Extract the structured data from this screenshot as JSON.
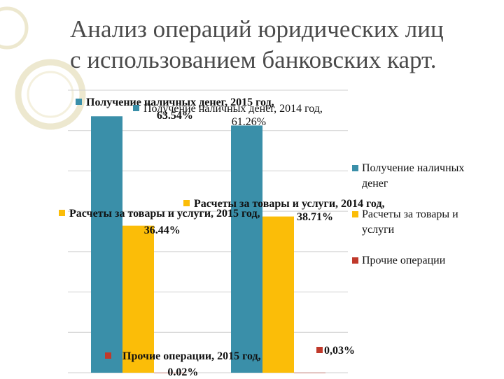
{
  "title": {
    "line1": "Анализ операций юридических лиц",
    "line2": "с использованием банковских карт."
  },
  "colors": {
    "cash": "#3a8fa9",
    "goods": "#fbbd08",
    "other": "#c0392b",
    "deco": "#ede8cf"
  },
  "chart_data": {
    "type": "bar",
    "categories": [
      "2015 год",
      "2014 год"
    ],
    "ylim": [
      0,
      70
    ],
    "grid": true,
    "legend_position": "right",
    "series": [
      {
        "name": "Получение наличных денег",
        "values": [
          63.54,
          61.26
        ]
      },
      {
        "name": "Расчеты за товары и услуги",
        "values": [
          36.44,
          38.71
        ]
      },
      {
        "name": "Прочие операции",
        "values": [
          0.02,
          0.03
        ]
      }
    ],
    "data_labels": [
      {
        "name": "Получение наличных денег, 2015 год,",
        "value": "63.54%"
      },
      {
        "name": "Получение наличных денег, 2014 год,",
        "value": "61.26%"
      },
      {
        "name": "Расчеты за товары и услуги, 2015 год,",
        "value": "36.44%"
      },
      {
        "name": "Расчеты за товары и услуги, 2014 год,",
        "value": "38.71%"
      },
      {
        "name": "Прочие операции, 2015 год,",
        "value": "0.02%"
      },
      {
        "name": "",
        "value": "0,03%"
      }
    ]
  },
  "legend": [
    {
      "label": "Получение наличных денег",
      "color": "#3a8fa9"
    },
    {
      "label": "Расчеты за товары и услуги",
      "color": "#fbbd08"
    },
    {
      "label": "Прочие операции",
      "color": "#c0392b"
    }
  ]
}
